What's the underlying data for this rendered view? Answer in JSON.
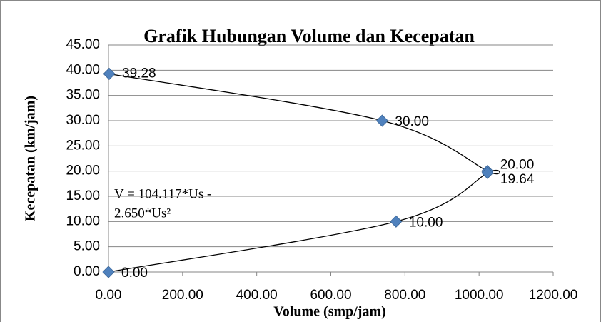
{
  "chart_data": {
    "type": "scatter",
    "title": "Grafik Hubungan Volume dan Kecepatan",
    "x_label": "Volume (smp/jam)",
    "y_label": "Kecepatan (km/jam)",
    "annotation": [
      "V = 104.117*Us -",
      "2.650*Us²"
    ],
    "series": [
      {
        "color": "#4f81bd",
        "x": [
          2,
          738.5,
          1022.3,
          1022.6,
          776,
          0
        ],
        "values": [
          39.28,
          30,
          20,
          19.64,
          10,
          0
        ],
        "value_labels": [
          "39.28",
          "30.00",
          "20.00",
          "19.64",
          "10.00",
          "0.00"
        ]
      }
    ],
    "trendline_color": "#000000",
    "xlim": [
      0,
      1200
    ],
    "xticks": [
      {
        "value": 0,
        "label": "0.00"
      },
      {
        "value": 200,
        "label": "200.00"
      },
      {
        "value": 400,
        "label": "400.00"
      },
      {
        "value": 600,
        "label": "600.00"
      },
      {
        "value": 800,
        "label": "800.00"
      },
      {
        "value": 1000,
        "label": "1000.00"
      },
      {
        "value": 1200,
        "label": "1200.00"
      }
    ],
    "ylim": [
      0,
      45
    ],
    "yticks": [
      {
        "value": 0,
        "label": "0.00"
      },
      {
        "value": 5,
        "label": "5.00"
      },
      {
        "value": 10,
        "label": "10.00"
      },
      {
        "value": 15,
        "label": "15.00"
      },
      {
        "value": 20,
        "label": "20.00"
      },
      {
        "value": 25,
        "label": "25.00"
      },
      {
        "value": 30,
        "label": "30.00"
      },
      {
        "value": 35,
        "label": "35.00"
      },
      {
        "value": 40,
        "label": "40.00"
      },
      {
        "value": 45,
        "label": "45.00"
      }
    ],
    "grid": true
  }
}
